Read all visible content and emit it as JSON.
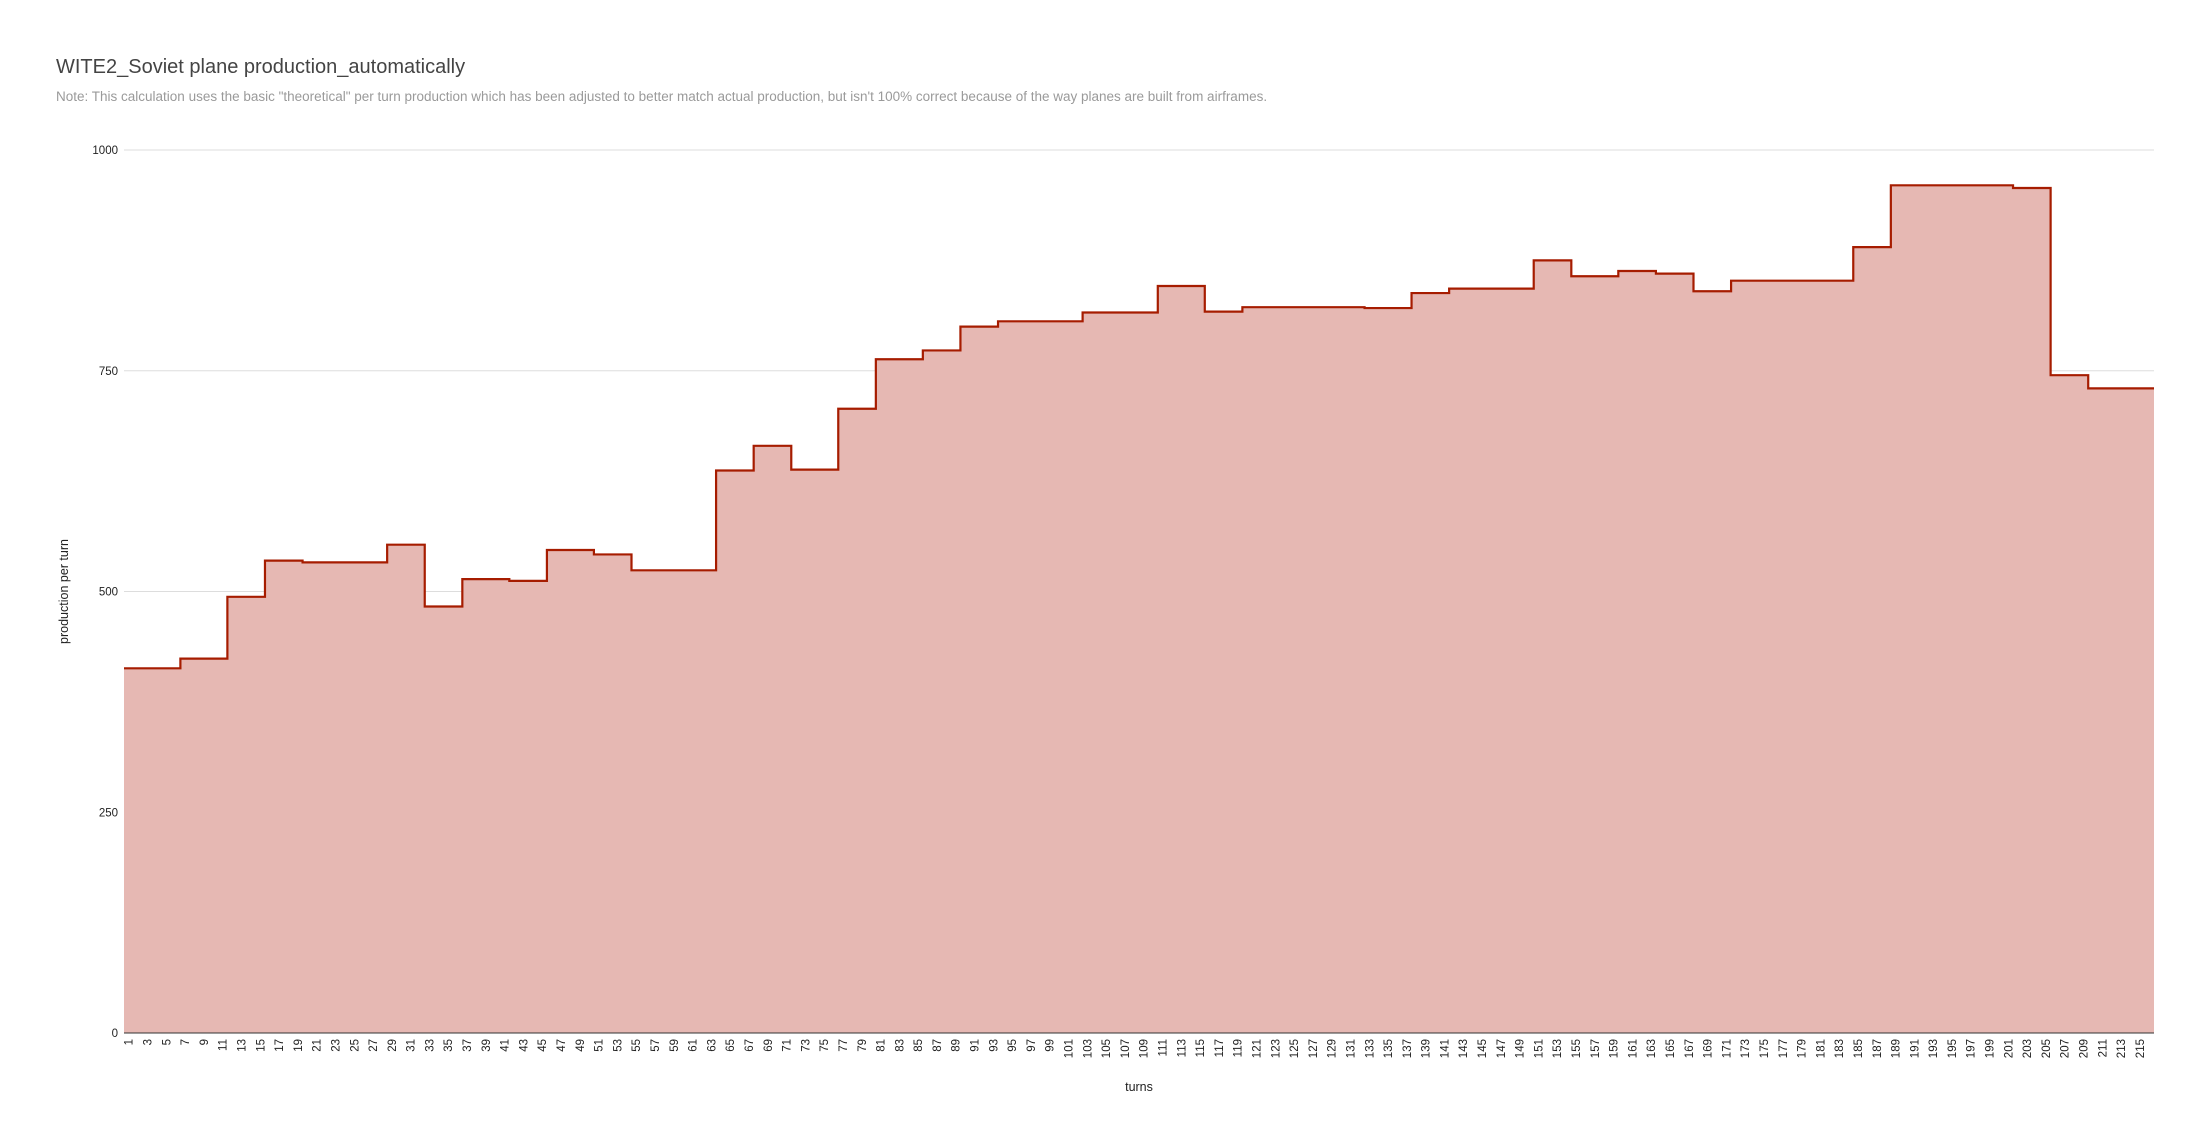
{
  "chart_data": {
    "type": "area",
    "step": true,
    "title": "WITE2_Soviet plane production_automatically",
    "subtitle": "Note: This calculation uses the basic \"theoretical\" per turn production which has been adjusted to better match actual production, but isn't 100% correct because of the way planes are built from airframes.",
    "xlabel": "turns",
    "ylabel": "production per turn",
    "ylim": [
      0,
      1000
    ],
    "yticks": [
      0,
      250,
      500,
      750,
      1000
    ],
    "xlim": [
      1,
      216
    ],
    "xticks_step": 2,
    "grid": true,
    "legend": "none",
    "colors": {
      "fill": "#e6b8b3",
      "line": "#a61c00",
      "grid": "#dddddd"
    },
    "steps": [
      {
        "start": 1,
        "value": 413
      },
      {
        "start": 7,
        "value": 424
      },
      {
        "start": 12,
        "value": 494
      },
      {
        "start": 16,
        "value": 535
      },
      {
        "start": 20,
        "value": 533
      },
      {
        "start": 29,
        "value": 553
      },
      {
        "start": 33,
        "value": 483
      },
      {
        "start": 37,
        "value": 514
      },
      {
        "start": 42,
        "value": 512
      },
      {
        "start": 46,
        "value": 547
      },
      {
        "start": 51,
        "value": 542
      },
      {
        "start": 55,
        "value": 524
      },
      {
        "start": 64,
        "value": 637
      },
      {
        "start": 68,
        "value": 665
      },
      {
        "start": 72,
        "value": 638
      },
      {
        "start": 77,
        "value": 707
      },
      {
        "start": 81,
        "value": 763
      },
      {
        "start": 86,
        "value": 773
      },
      {
        "start": 90,
        "value": 800
      },
      {
        "start": 94,
        "value": 806
      },
      {
        "start": 103,
        "value": 816
      },
      {
        "start": 111,
        "value": 846
      },
      {
        "start": 116,
        "value": 817
      },
      {
        "start": 120,
        "value": 822
      },
      {
        "start": 133,
        "value": 821
      },
      {
        "start": 138,
        "value": 838
      },
      {
        "start": 142,
        "value": 843
      },
      {
        "start": 151,
        "value": 875
      },
      {
        "start": 155,
        "value": 857
      },
      {
        "start": 160,
        "value": 863
      },
      {
        "start": 164,
        "value": 860
      },
      {
        "start": 168,
        "value": 840
      },
      {
        "start": 172,
        "value": 852
      },
      {
        "start": 185,
        "value": 890
      },
      {
        "start": 189,
        "value": 960
      },
      {
        "start": 202,
        "value": 957
      },
      {
        "start": 206,
        "value": 745
      },
      {
        "start": 210,
        "value": 730
      }
    ]
  }
}
